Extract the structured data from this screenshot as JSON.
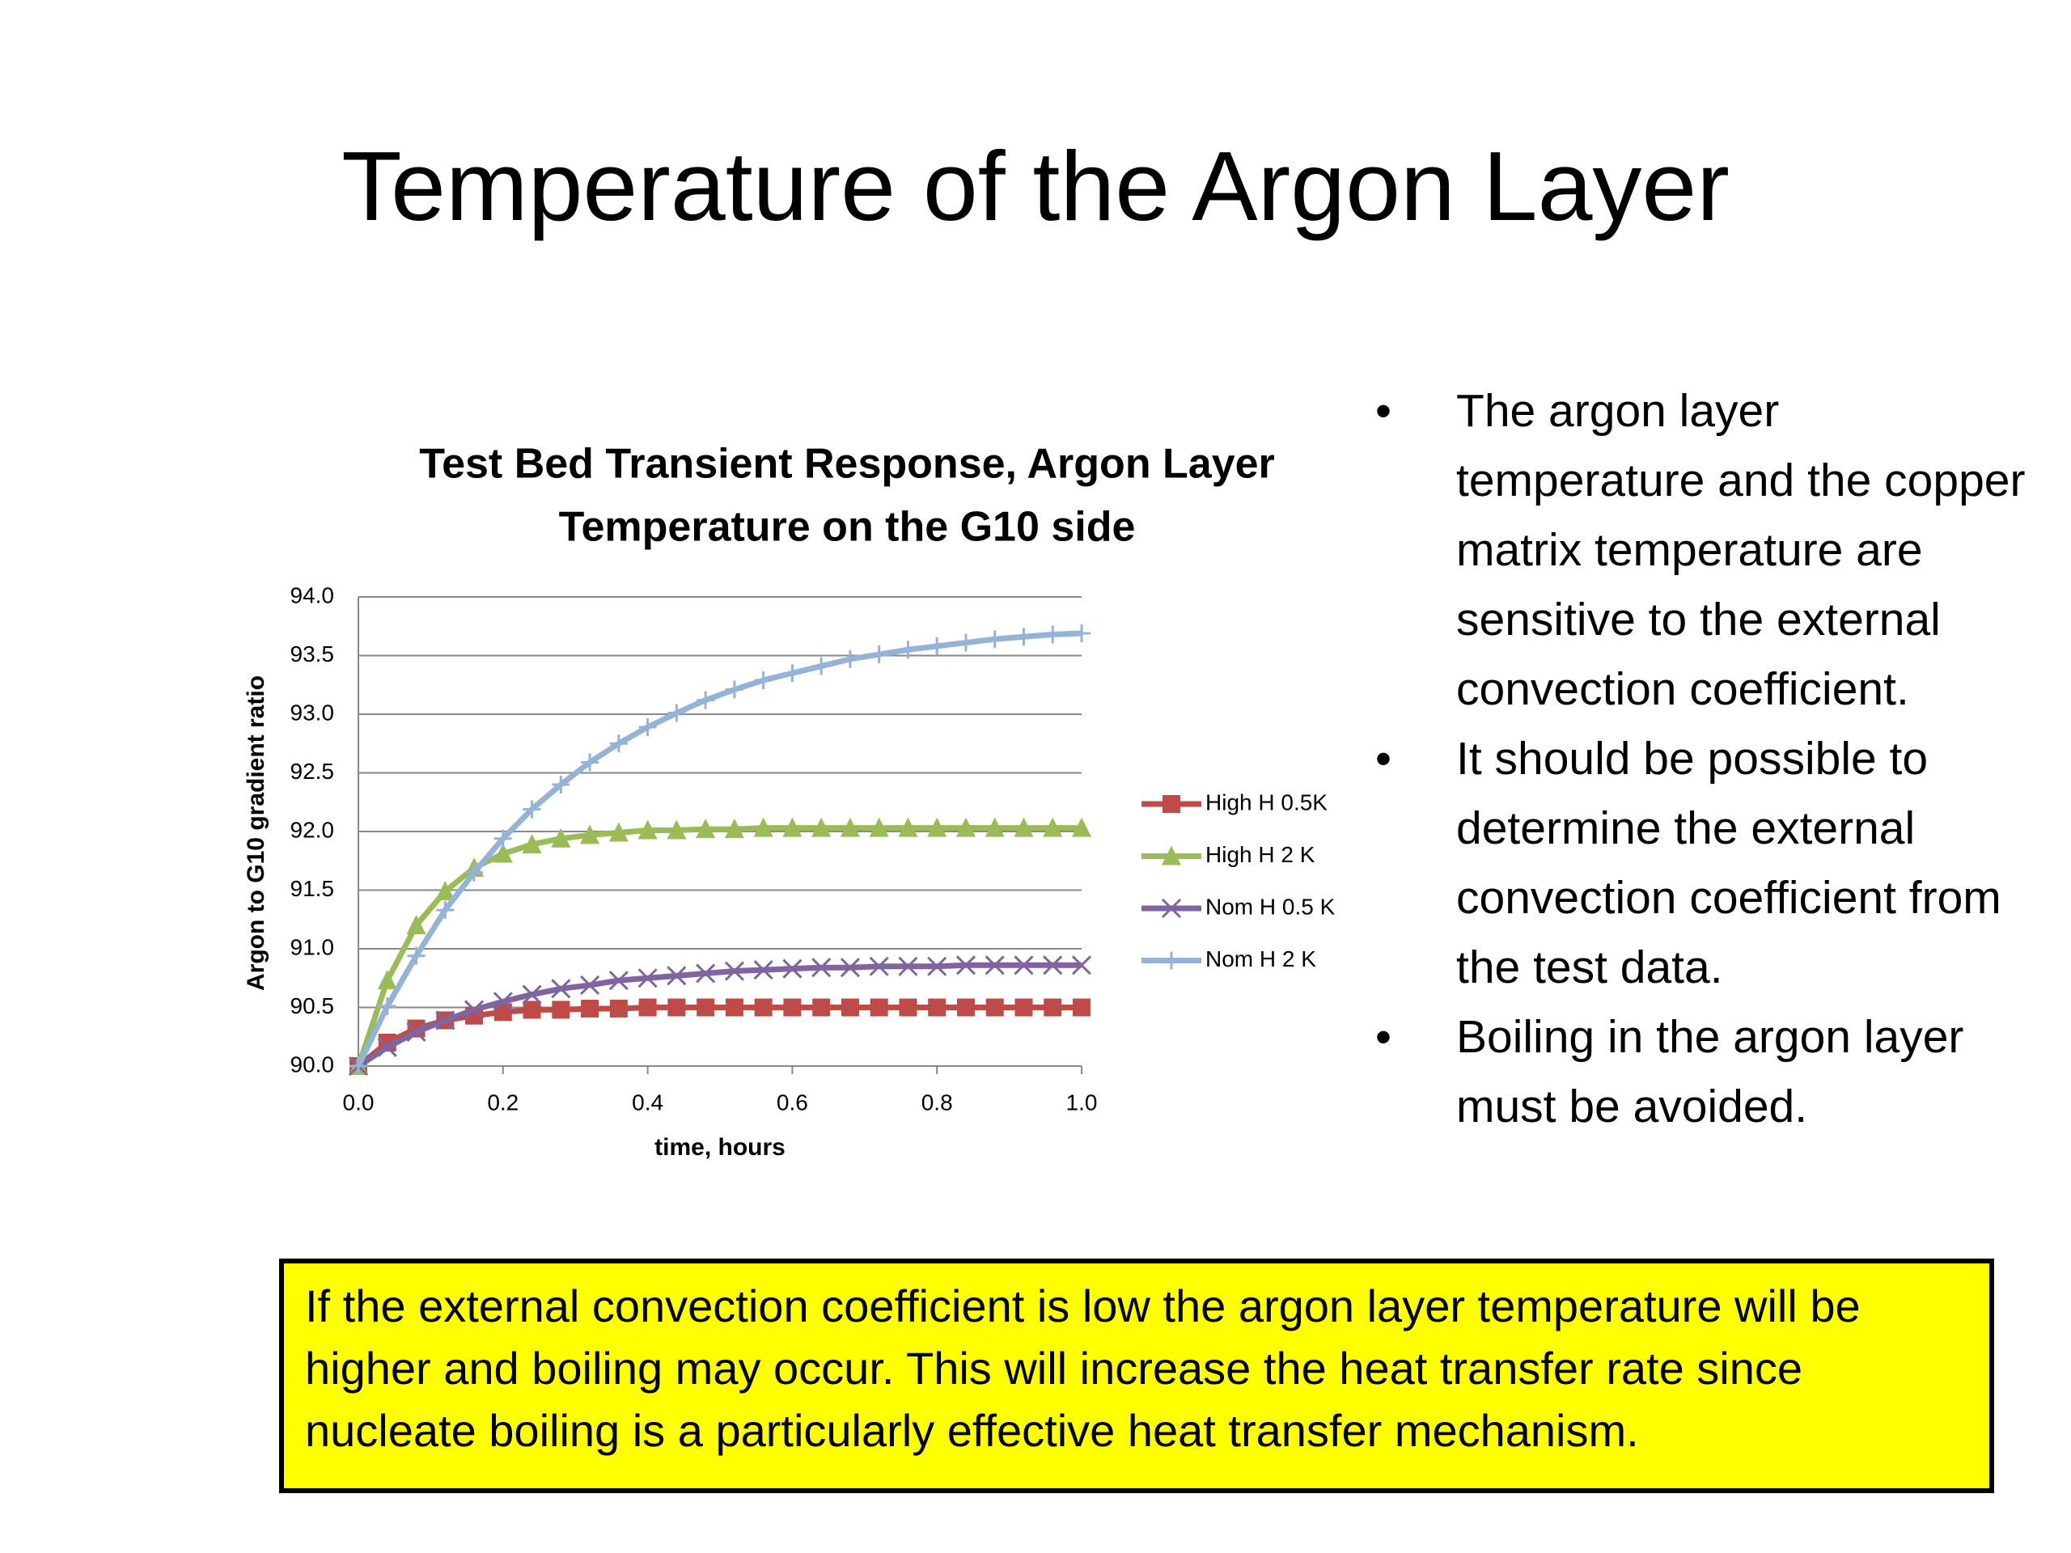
{
  "title": "Temperature of the Argon Layer",
  "bullets": [
    "The argon layer temperature and the copper matrix temperature are sensitive to the external convection coefficient.",
    "It should be possible to determine the external convection coefficient from the test data.",
    "Boiling in the argon layer must be avoided."
  ],
  "callout": "If the external convection coefficient is low the argon layer temperature will be higher and boiling may occur. This will increase the heat transfer rate since nucleate boiling is a particularly effective heat transfer mechanism.",
  "chart_data": {
    "type": "line",
    "title": [
      "Test Bed Transient Response, Argon Layer",
      "Temperature on the G10 side"
    ],
    "x_label": "time, hours",
    "y_label": "Argon to G10 gradient ratio",
    "x": [
      0,
      0.04,
      0.08,
      0.12,
      0.16,
      0.2,
      0.24,
      0.28,
      0.32,
      0.36,
      0.4,
      0.44,
      0.48,
      0.52,
      0.56,
      0.6,
      0.64,
      0.68,
      0.72,
      0.76,
      0.8,
      0.84,
      0.88,
      0.92,
      0.96,
      1.0
    ],
    "series": [
      {
        "name": "High H 0.5K",
        "color": "#be4b48",
        "marker": "square",
        "values": [
          90.0,
          90.2,
          90.32,
          90.39,
          90.43,
          90.46,
          90.48,
          90.48,
          90.49,
          90.49,
          90.5,
          90.5,
          90.5,
          90.5,
          90.5,
          90.5,
          90.5,
          90.5,
          90.5,
          90.5,
          90.5,
          90.5,
          90.5,
          90.5,
          90.5,
          90.5
        ]
      },
      {
        "name": "High H 2 K",
        "color": "#9bbb59",
        "marker": "triangle",
        "values": [
          90.0,
          90.73,
          91.2,
          91.49,
          91.69,
          91.81,
          91.89,
          91.94,
          91.97,
          91.99,
          92.01,
          92.01,
          92.02,
          92.02,
          92.03,
          92.03,
          92.03,
          92.03,
          92.03,
          92.03,
          92.03,
          92.03,
          92.03,
          92.03,
          92.03,
          92.03
        ]
      },
      {
        "name": "Nom H 0.5 K",
        "color": "#7f64a0",
        "marker": "x",
        "values": [
          90.0,
          90.16,
          90.29,
          90.39,
          90.48,
          90.55,
          90.61,
          90.66,
          90.69,
          90.73,
          90.75,
          90.77,
          90.79,
          90.81,
          90.82,
          90.83,
          90.84,
          90.84,
          90.85,
          90.85,
          90.85,
          90.86,
          90.86,
          90.86,
          90.86,
          90.86
        ]
      },
      {
        "name": "Nom H 2 K",
        "color": "#95b3d7",
        "marker": "plus",
        "values": [
          90.0,
          90.51,
          90.94,
          91.33,
          91.65,
          91.94,
          92.19,
          92.4,
          92.59,
          92.75,
          92.89,
          93.01,
          93.12,
          93.21,
          93.29,
          93.35,
          93.41,
          93.47,
          93.51,
          93.55,
          93.58,
          93.61,
          93.64,
          93.66,
          93.68,
          93.69
        ]
      }
    ],
    "xlim": [
      0,
      1.0
    ],
    "xticks": [
      {
        "value": 0,
        "label": "0.0"
      },
      0.2,
      0.4,
      0.6,
      0.8,
      {
        "value": 1.0,
        "label": "1.0"
      }
    ],
    "ylim": [
      90,
      94
    ],
    "yticks": [
      {
        "value": 90,
        "label": "90.0"
      },
      90.5,
      {
        "value": 91,
        "label": "91.0"
      },
      91.5,
      {
        "value": 92,
        "label": "92.0"
      },
      92.5,
      {
        "value": 93,
        "label": "93.0"
      },
      93.5,
      {
        "value": 94,
        "label": "94.0"
      }
    ],
    "grid": true,
    "legend": "right"
  }
}
